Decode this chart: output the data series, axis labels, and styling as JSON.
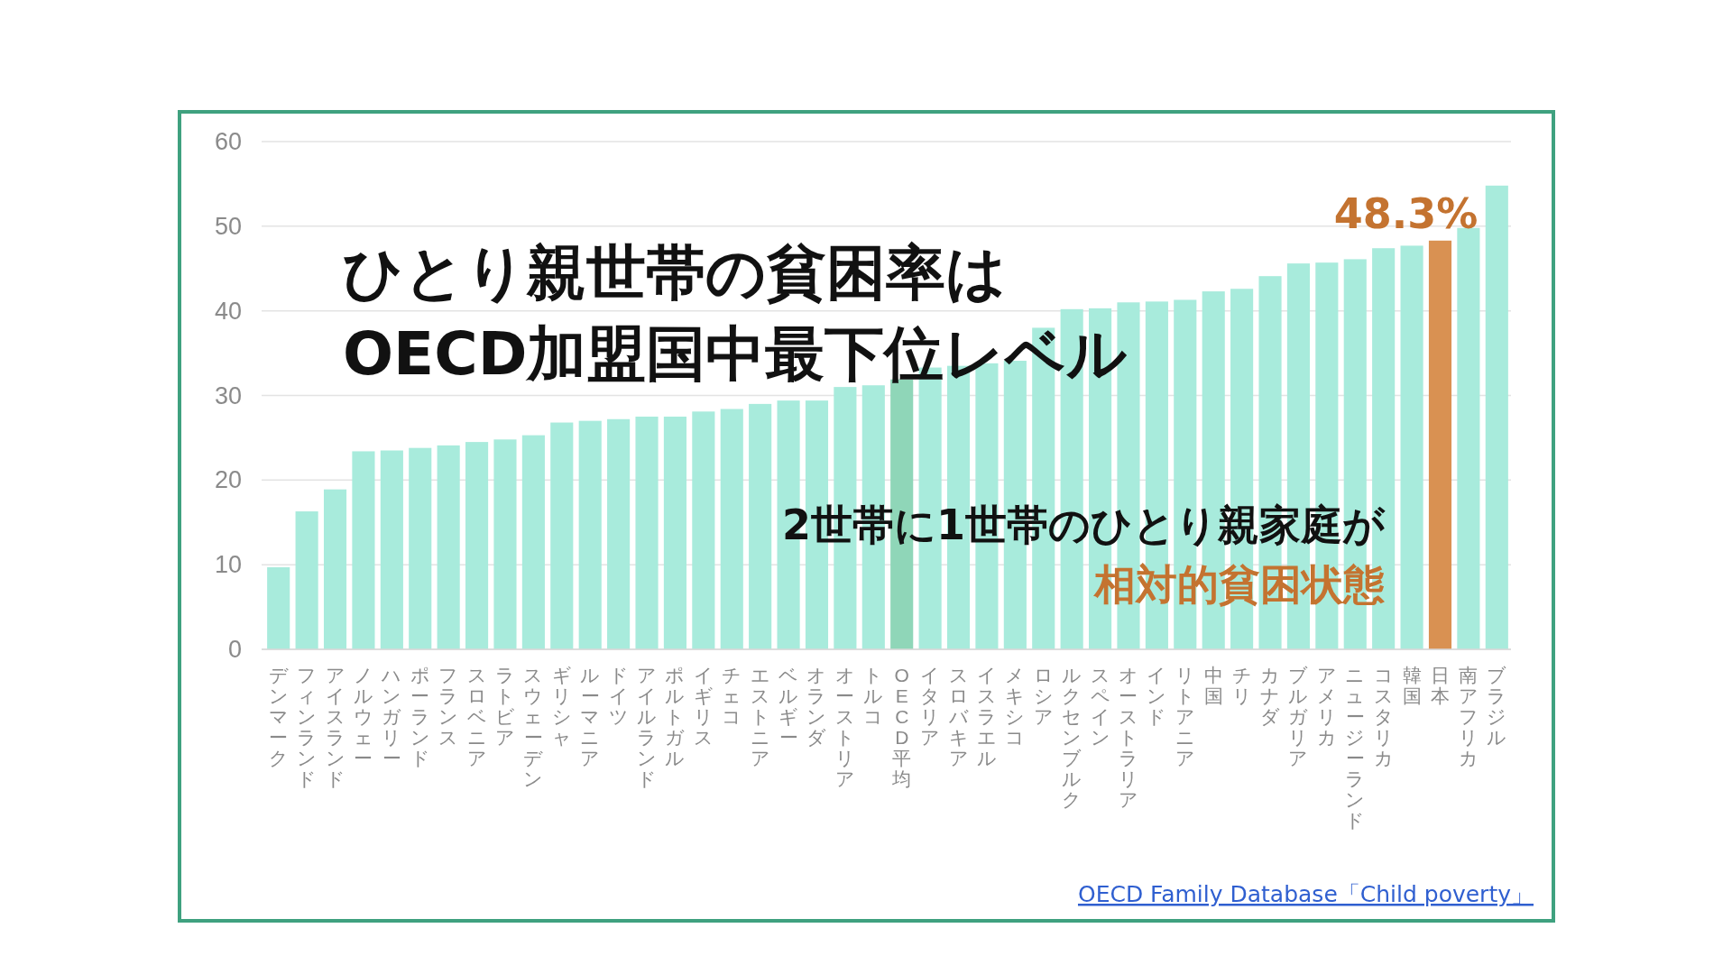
{
  "chart_data": {
    "type": "bar",
    "title": "ひとり親世帯の貧困率は",
    "subtitle": "OECD加盟国中最下位レベル",
    "categories": [
      "デンマーク",
      "フィンランド",
      "アイスランド",
      "ノルウェー",
      "ハンガリー",
      "ポーランド",
      "フランス",
      "スロベニア",
      "ラトビア",
      "スウェーデン",
      "ギリシャ",
      "ルーマニア",
      "ドイツ",
      "アイルランド",
      "ポルトガル",
      "イギリス",
      "チェコ",
      "エストニア",
      "ベルギー",
      "オランダ",
      "オーストリア",
      "トルコ",
      "OECD平均",
      "イタリア",
      "スロバキア",
      "イスラエル",
      "メキシコ",
      "ロシア",
      "ルクセンブルク",
      "スペイン",
      "オーストラリア",
      "インド",
      "リトアニア",
      "中国",
      "チリ",
      "カナダ",
      "ブルガリア",
      "アメリカ",
      "ニュージーランド",
      "コスタリカ",
      "韓国",
      "日本",
      "南アフリカ",
      "ブラジル"
    ],
    "values": [
      9.7,
      16.3,
      18.9,
      23.4,
      23.5,
      23.8,
      24.1,
      24.5,
      24.8,
      25.3,
      26.8,
      27.0,
      27.2,
      27.5,
      27.5,
      28.1,
      28.4,
      29.0,
      29.4,
      29.4,
      31.0,
      31.2,
      31.9,
      33.3,
      33.5,
      33.8,
      34.1,
      38.0,
      40.2,
      40.3,
      41.0,
      41.1,
      41.3,
      42.3,
      42.6,
      44.1,
      45.6,
      45.7,
      46.1,
      47.4,
      47.7,
      48.3,
      49.8,
      54.8
    ],
    "colors": [
      "#a8ebdc",
      "#a8ebdc",
      "#a8ebdc",
      "#a8ebdc",
      "#a8ebdc",
      "#a8ebdc",
      "#a8ebdc",
      "#a8ebdc",
      "#a8ebdc",
      "#a8ebdc",
      "#a8ebdc",
      "#a8ebdc",
      "#a8ebdc",
      "#a8ebdc",
      "#a8ebdc",
      "#a8ebdc",
      "#a8ebdc",
      "#a8ebdc",
      "#a8ebdc",
      "#a8ebdc",
      "#a8ebdc",
      "#a8ebdc",
      "#8fd6b8",
      "#a8ebdc",
      "#a8ebdc",
      "#a8ebdc",
      "#a8ebdc",
      "#a8ebdc",
      "#a8ebdc",
      "#a8ebdc",
      "#a8ebdc",
      "#a8ebdc",
      "#a8ebdc",
      "#a8ebdc",
      "#a8ebdc",
      "#a8ebdc",
      "#a8ebdc",
      "#a8ebdc",
      "#a8ebdc",
      "#a8ebdc",
      "#a8ebdc",
      "#d99152",
      "#a8ebdc",
      "#a8ebdc"
    ],
    "value_labels": [
      null,
      null,
      null,
      null,
      null,
      null,
      null,
      null,
      null,
      null,
      null,
      null,
      null,
      null,
      null,
      null,
      null,
      null,
      null,
      null,
      null,
      null,
      null,
      null,
      null,
      null,
      null,
      null,
      null,
      null,
      null,
      null,
      null,
      null,
      null,
      null,
      null,
      null,
      null,
      null,
      null,
      "48.3%",
      null,
      null
    ],
    "ylim": [
      0,
      60
    ],
    "yticks": [
      0,
      10,
      20,
      30,
      40,
      50,
      60
    ],
    "grid": "y",
    "annotations": [
      "2世帯に1世帯のひとり親家庭が",
      "相対的貧困状態",
      "OECD Family Database「Child poverty」"
    ]
  }
}
